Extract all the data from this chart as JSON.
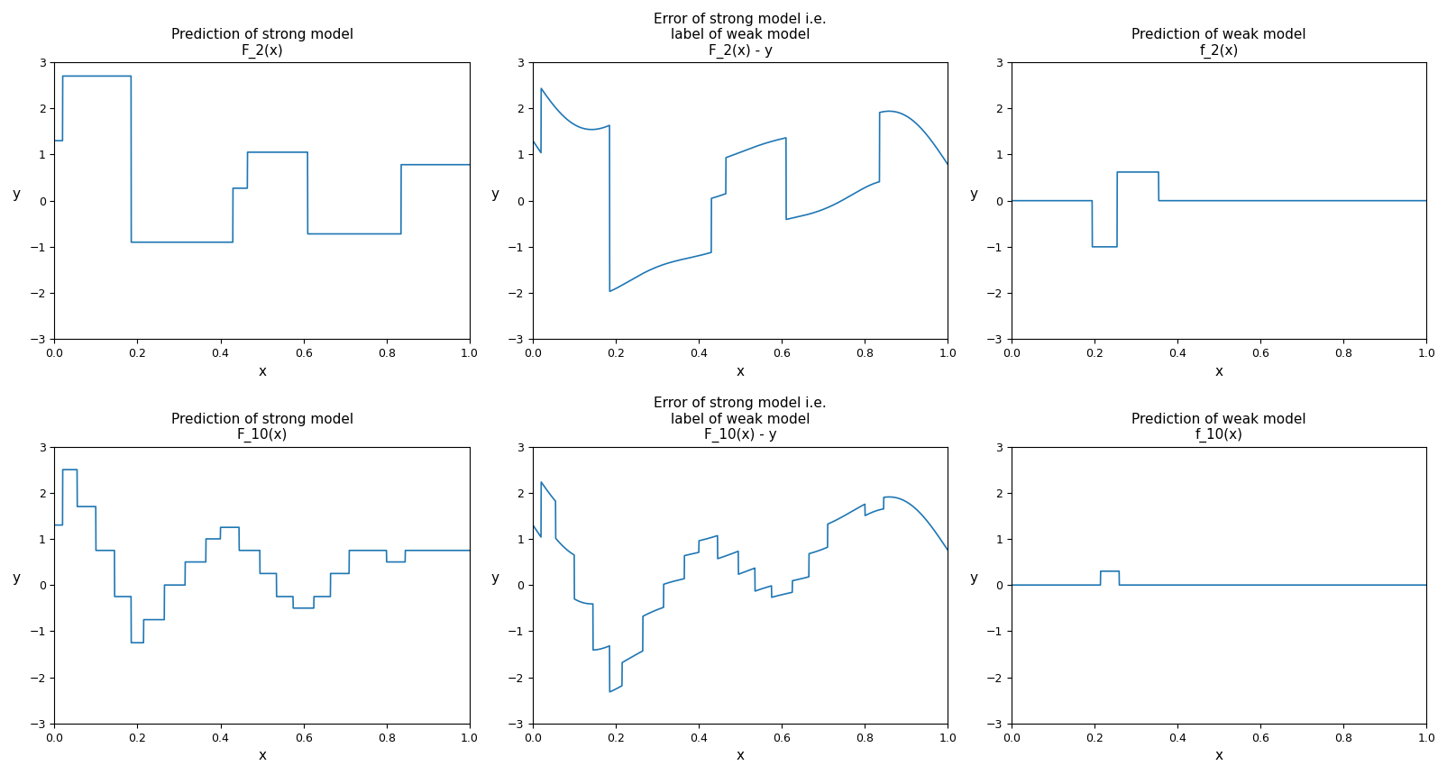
{
  "title_row1_col1": "Prediction of strong model\nF_2(x)",
  "title_row1_col2": "Error of strong model i.e.\nlabel of weak model\nF_2(x) - y",
  "title_row1_col3": "Prediction of weak model\nf_2(x)",
  "title_row2_col1": "Prediction of strong model\nF_10(x)",
  "title_row2_col2": "Error of strong model i.e.\nlabel of weak model\nF_10(x) - y",
  "title_row2_col3": "Prediction of weak model\nf_10(x)",
  "xlabel": "x",
  "ylabel": "y",
  "ylim": [
    -3,
    3
  ],
  "xlim": [
    0.0,
    1.0
  ],
  "line_color": "#1f77b4",
  "background_color": "#ffffff"
}
